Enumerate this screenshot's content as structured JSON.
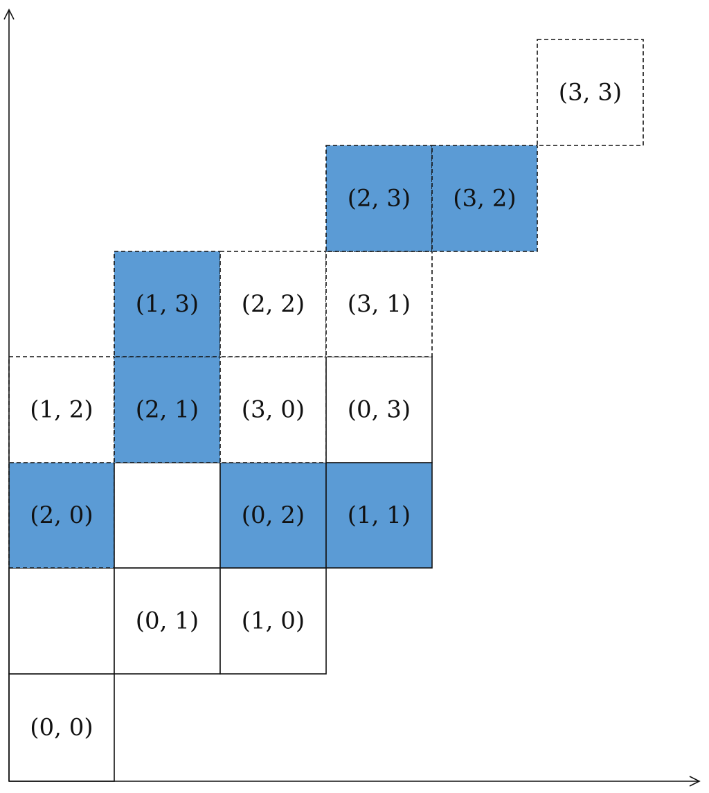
{
  "colors": {
    "fill_highlight": "#5b9bd5",
    "fill_plain": "#ffffff",
    "stroke": "#111111"
  },
  "cells": [
    {
      "label": "(0, 0)",
      "fill": "plain",
      "border": "solid"
    },
    {
      "label": "",
      "fill": "plain",
      "border": "solid"
    },
    {
      "label": "(0, 1)",
      "fill": "plain",
      "border": "solid"
    },
    {
      "label": "(1, 0)",
      "fill": "plain",
      "border": "solid"
    },
    {
      "label": "(2, 0)",
      "fill": "highlight",
      "border": "dashed"
    },
    {
      "label": "",
      "fill": "plain",
      "border": "solid"
    },
    {
      "label": "(0, 2)",
      "fill": "highlight",
      "border": "solid"
    },
    {
      "label": "(1, 1)",
      "fill": "highlight",
      "border": "solid"
    },
    {
      "label": "(1, 2)",
      "fill": "plain",
      "border": "dashed"
    },
    {
      "label": "(2, 1)",
      "fill": "highlight",
      "border": "dashed"
    },
    {
      "label": "(3, 0)",
      "fill": "plain",
      "border": "dashed"
    },
    {
      "label": "(0, 3)",
      "fill": "plain",
      "border": "solid"
    },
    {
      "label": "(1, 3)",
      "fill": "highlight",
      "border": "dashed"
    },
    {
      "label": "(2, 2)",
      "fill": "plain",
      "border": "dashed"
    },
    {
      "label": "(3, 1)",
      "fill": "plain",
      "border": "dashed"
    },
    {
      "label": "(2, 3)",
      "fill": "highlight",
      "border": "dashed"
    },
    {
      "label": "(3, 2)",
      "fill": "highlight",
      "border": "dashed"
    },
    {
      "label": "(3, 3)",
      "fill": "plain",
      "border": "dashed"
    }
  ]
}
